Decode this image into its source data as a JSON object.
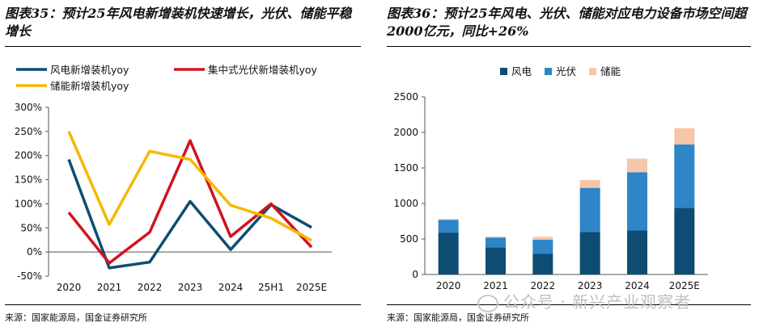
{
  "left": {
    "title": "图表35：预计25年风电新增装机快速增长，光伏、储能平稳增长",
    "source": "来源：国家能源局，国金证券研究所"
  },
  "right": {
    "title": "图表36：预计25年风电、光伏、储能对应电力设备市场空间超2000亿元，同比+26%",
    "source": "来源：国家能源局，国金证券研究所"
  },
  "watermark": "公众号 · 新兴产业观察者",
  "chart_data": [
    {
      "type": "line",
      "categories": [
        "2020",
        "2021",
        "2022",
        "2023",
        "2024",
        "25H1",
        "2025E"
      ],
      "ylim": [
        -50,
        300
      ],
      "yticks": [
        -50,
        0,
        50,
        100,
        150,
        200,
        250,
        300
      ],
      "ytick_labels": [
        "-50%",
        "0%",
        "50%",
        "100%",
        "150%",
        "200%",
        "250%",
        "300%"
      ],
      "series": [
        {
          "name": "风电新增装机yoy",
          "color": "#0d4d73",
          "values": [
            192,
            -33,
            -21,
            105,
            5,
            98,
            51
          ]
        },
        {
          "name": "集中式光伏新增装机yoy",
          "color": "#d0141b",
          "values": [
            82,
            -23,
            41,
            231,
            32,
            100,
            10
          ]
        },
        {
          "name": "储能新增装机yoy",
          "color": "#f5b800",
          "values": [
            250,
            57,
            209,
            192,
            97,
            70,
            24
          ]
        }
      ]
    },
    {
      "type": "bar",
      "stacked": true,
      "categories": [
        "2020",
        "2021",
        "2022",
        "2023",
        "2024",
        "2025E"
      ],
      "ylim": [
        0,
        2500
      ],
      "yticks": [
        0,
        500,
        1000,
        1500,
        2000,
        2500
      ],
      "ytick_labels": [
        "0",
        "500",
        "1000",
        "1500",
        "2000",
        "2500"
      ],
      "series": [
        {
          "name": "风电",
          "color": "#0d4d73",
          "values": [
            590,
            380,
            290,
            600,
            620,
            940
          ]
        },
        {
          "name": "光伏",
          "color": "#2e86c8",
          "values": [
            180,
            140,
            200,
            620,
            820,
            890
          ]
        },
        {
          "name": "储能",
          "color": "#f7c6a8",
          "values": [
            10,
            15,
            40,
            110,
            190,
            230
          ]
        }
      ]
    }
  ]
}
